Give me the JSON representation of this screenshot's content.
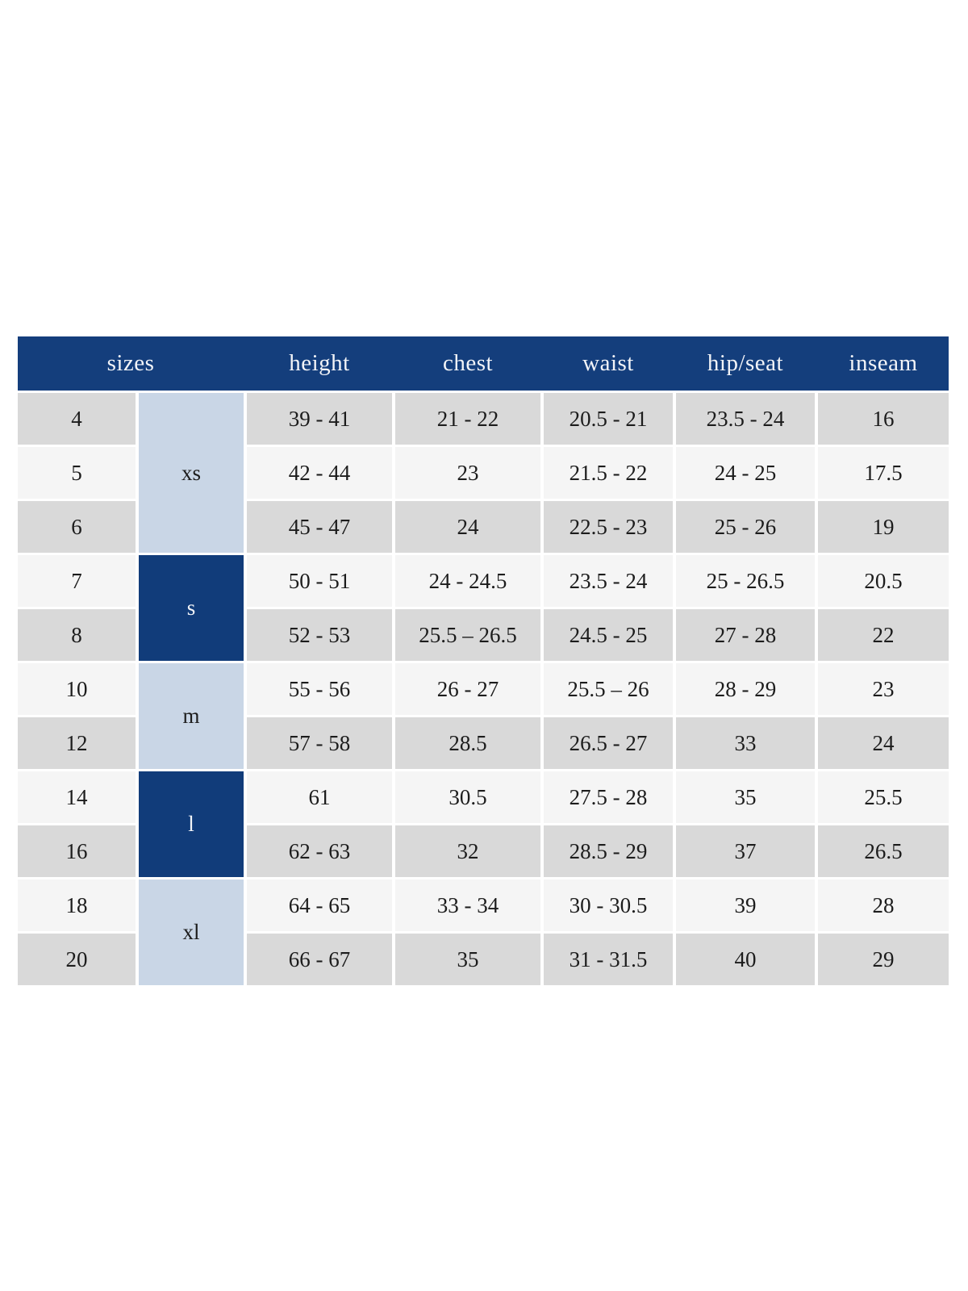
{
  "colors": {
    "page_background": "#ffffff",
    "header_bar_bg": "#143e7c",
    "header_text": "#f2f4f8",
    "size_group_dark_bg": "#113c7a",
    "size_group_light_bg": "#c9d6e6",
    "row_shade_dark": "#d9d9d9",
    "row_shade_light": "#f5f5f5",
    "body_text": "#1c1c1c"
  },
  "chart_data": {
    "type": "table",
    "title": "",
    "header_labels": [
      "sizes",
      "height",
      "chest",
      "waist",
      "hip/seat",
      "inseam"
    ],
    "size_groups": [
      {
        "label": "xs",
        "rows": 3,
        "shade": "light"
      },
      {
        "label": "s",
        "rows": 2,
        "shade": "dark"
      },
      {
        "label": "m",
        "rows": 2,
        "shade": "light"
      },
      {
        "label": "l",
        "rows": 2,
        "shade": "dark"
      },
      {
        "label": "xl",
        "rows": 2,
        "shade": "light"
      }
    ],
    "rows": [
      {
        "size": "4",
        "height": "39 - 41",
        "chest": "21 - 22",
        "waist": "20.5 - 21",
        "hip_seat": "23.5 - 24",
        "inseam": "16"
      },
      {
        "size": "5",
        "height": "42 - 44",
        "chest": "23",
        "waist": "21.5 - 22",
        "hip_seat": "24 - 25",
        "inseam": "17.5"
      },
      {
        "size": "6",
        "height": "45 - 47",
        "chest": "24",
        "waist": "22.5 - 23",
        "hip_seat": "25 - 26",
        "inseam": "19"
      },
      {
        "size": "7",
        "height": "50 - 51",
        "chest": "24 - 24.5",
        "waist": "23.5 - 24",
        "hip_seat": "25 - 26.5",
        "inseam": "20.5"
      },
      {
        "size": "8",
        "height": "52 - 53",
        "chest": "25.5 – 26.5",
        "waist": "24.5 - 25",
        "hip_seat": "27 - 28",
        "inseam": "22"
      },
      {
        "size": "10",
        "height": "55 - 56",
        "chest": "26 - 27",
        "waist": "25.5 – 26",
        "hip_seat": "28 - 29",
        "inseam": "23"
      },
      {
        "size": "12",
        "height": "57 - 58",
        "chest": "28.5",
        "waist": "26.5 - 27",
        "hip_seat": "33",
        "inseam": "24"
      },
      {
        "size": "14",
        "height": "61",
        "chest": "30.5",
        "waist": "27.5 - 28",
        "hip_seat": "35",
        "inseam": "25.5"
      },
      {
        "size": "16",
        "height": "62 - 63",
        "chest": "32",
        "waist": "28.5 - 29",
        "hip_seat": "37",
        "inseam": "26.5"
      },
      {
        "size": "18",
        "height": "64 - 65",
        "chest": "33 - 34",
        "waist": "30 - 30.5",
        "hip_seat": "39",
        "inseam": "28"
      },
      {
        "size": "20",
        "height": "66 - 67",
        "chest": "35",
        "waist": "31 - 31.5",
        "hip_seat": "40",
        "inseam": "29"
      }
    ]
  }
}
